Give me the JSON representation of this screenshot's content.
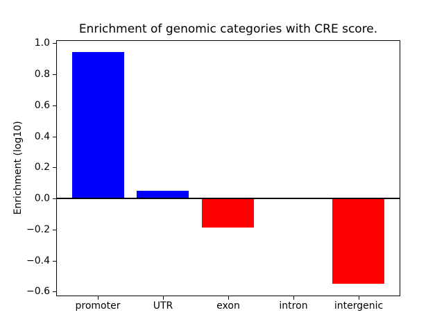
{
  "figure": {
    "background": "#ffffff",
    "text_color": "#000000",
    "axis_color": "#000000"
  },
  "chart_data": {
    "type": "bar",
    "title": "Enrichment of genomic categories with CRE score.",
    "xlabel": "",
    "ylabel": "Enrichment (log10)",
    "categories": [
      "promoter",
      "UTR",
      "exon",
      "intron",
      "intergenic"
    ],
    "values": [
      0.945,
      0.05,
      -0.19,
      0.0,
      -0.55
    ],
    "bar_colors": [
      "#0000ff",
      "#0000ff",
      "#ff0000",
      "#ff0000",
      "#ff0000"
    ],
    "positive_color": "#0000ff",
    "negative_color": "#ff0000",
    "zero_line_color": "#000000",
    "yticks": [
      -0.6,
      -0.4,
      -0.2,
      0.0,
      0.2,
      0.4,
      0.6,
      0.8,
      1.0
    ],
    "ylim": [
      -0.63,
      1.02
    ],
    "xlim": [
      -0.64,
      4.64
    ],
    "bar_width": 0.8,
    "grid": false,
    "legend": null
  }
}
